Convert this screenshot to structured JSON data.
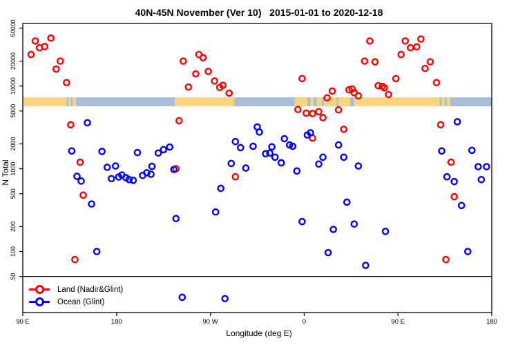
{
  "title": "40N-45N November (Ver 10)   2015-01-01 to 2020-12-18",
  "chart_data": {
    "type": "scatter",
    "title": "40N-45N November (Ver 10)   2015-01-01 to 2020-12-18",
    "xlabel": "Longitude (deg E)",
    "ylabel": "N Total",
    "x_axis": {
      "domain": [
        90,
        540
      ],
      "ticks": [
        {
          "value": 90,
          "label": "90 E"
        },
        {
          "value": 180,
          "label": "180"
        },
        {
          "value": 270,
          "label": "90 W"
        },
        {
          "value": 360,
          "label": "0"
        },
        {
          "value": 450,
          "label": "90 E"
        },
        {
          "value": 540,
          "label": "180"
        }
      ]
    },
    "y_axis": {
      "scale": "log",
      "domain": [
        18.3,
        57000
      ],
      "ticks": [
        {
          "value": 50000,
          "label": "50000"
        },
        {
          "value": 20000,
          "label": "20000"
        },
        {
          "value": 10000,
          "label": "10000"
        },
        {
          "value": 5000,
          "label": "5000"
        },
        {
          "value": 2000,
          "label": "2000"
        },
        {
          "value": 1000,
          "label": "1000"
        },
        {
          "value": 500,
          "label": "500"
        },
        {
          "value": 200,
          "label": "200"
        },
        {
          "value": 100,
          "label": "100"
        },
        {
          "value": 50,
          "label": "50"
        }
      ]
    },
    "reference_line": {
      "y": 50,
      "color": "#000000"
    },
    "map_strip": {
      "value_range": [
        5700,
        7300
      ],
      "land_color": "#F9D67E",
      "ocean_color": "#A9BDD8",
      "segments": [
        {
          "from": 90,
          "to": 132,
          "type": "land"
        },
        {
          "from": 132,
          "to": 134,
          "type": "ocean"
        },
        {
          "from": 134,
          "to": 136,
          "type": "land"
        },
        {
          "from": 136,
          "to": 138,
          "type": "ocean"
        },
        {
          "from": 138,
          "to": 141,
          "type": "land"
        },
        {
          "from": 141,
          "to": 236,
          "type": "ocean"
        },
        {
          "from": 236,
          "to": 293,
          "type": "land"
        },
        {
          "from": 293,
          "to": 351,
          "type": "ocean"
        },
        {
          "from": 351,
          "to": 363,
          "type": "land"
        },
        {
          "from": 363,
          "to": 366,
          "type": "ocean"
        },
        {
          "from": 366,
          "to": 369,
          "type": "land"
        },
        {
          "from": 369,
          "to": 372,
          "type": "ocean"
        },
        {
          "from": 372,
          "to": 377,
          "type": "land"
        },
        {
          "from": 377,
          "to": 379,
          "type": "ocean"
        },
        {
          "from": 379,
          "to": 391,
          "type": "land"
        },
        {
          "from": 391,
          "to": 393,
          "type": "ocean"
        },
        {
          "from": 393,
          "to": 404,
          "type": "land"
        },
        {
          "from": 404,
          "to": 408,
          "type": "ocean"
        },
        {
          "from": 408,
          "to": 490,
          "type": "land"
        },
        {
          "from": 490,
          "to": 492,
          "type": "ocean"
        },
        {
          "from": 492,
          "to": 495,
          "type": "land"
        },
        {
          "from": 495,
          "to": 497,
          "type": "ocean"
        },
        {
          "from": 497,
          "to": 500,
          "type": "land"
        },
        {
          "from": 500,
          "to": 540,
          "type": "ocean"
        }
      ]
    },
    "series": [
      {
        "name": "Land (Nadir&Glint)",
        "color": "#FF0000",
        "marker": "open-circle",
        "points": [
          [
            98,
            24000
          ],
          [
            102,
            35000
          ],
          [
            106,
            29000
          ],
          [
            111,
            30000
          ],
          [
            117,
            38000
          ],
          [
            122,
            16000
          ],
          [
            126,
            20000
          ],
          [
            132,
            11000
          ],
          [
            136,
            3400
          ],
          [
            140,
            80
          ],
          [
            145,
            1200
          ],
          [
            148,
            480
          ],
          [
            237,
            1000
          ],
          [
            240,
            3800
          ],
          [
            244,
            20000
          ],
          [
            249,
            9700
          ],
          [
            256,
            14000
          ],
          [
            259,
            24000
          ],
          [
            263,
            22000
          ],
          [
            268,
            15000
          ],
          [
            274,
            11500
          ],
          [
            279,
            9600
          ],
          [
            282,
            10200
          ],
          [
            288,
            8200
          ],
          [
            294,
            800
          ],
          [
            354,
            5200
          ],
          [
            358,
            12300
          ],
          [
            362,
            4700
          ],
          [
            368,
            4650
          ],
          [
            368,
            2350
          ],
          [
            374,
            4900
          ],
          [
            378,
            4150
          ],
          [
            382,
            7200
          ],
          [
            387,
            8700
          ],
          [
            393,
            5150
          ],
          [
            398,
            3000
          ],
          [
            403,
            9000
          ],
          [
            406,
            9200
          ],
          [
            408,
            8300
          ],
          [
            412,
            7600
          ],
          [
            418,
            20000
          ],
          [
            423,
            35000
          ],
          [
            428,
            19600
          ],
          [
            431,
            10100
          ],
          [
            435,
            9900
          ],
          [
            437,
            9500
          ],
          [
            441,
            7900
          ],
          [
            448,
            12300
          ],
          [
            453,
            24000
          ],
          [
            457,
            35000
          ],
          [
            462,
            29000
          ],
          [
            468,
            29700
          ],
          [
            472,
            37000
          ],
          [
            476,
            16300
          ],
          [
            481,
            19600
          ],
          [
            487,
            11000
          ],
          [
            491,
            3400
          ],
          [
            496,
            80
          ],
          [
            501,
            1200
          ],
          [
            504,
            460
          ]
        ]
      },
      {
        "name": "Ocean (Glint)",
        "color": "#0000FF",
        "marker": "open-circle",
        "points": [
          [
            137,
            1640
          ],
          [
            142,
            810
          ],
          [
            146,
            710
          ],
          [
            152,
            3600
          ],
          [
            156,
            375
          ],
          [
            161,
            100
          ],
          [
            166,
            1620
          ],
          [
            171,
            1040
          ],
          [
            175,
            760
          ],
          [
            179,
            1080
          ],
          [
            182,
            795
          ],
          [
            185,
            840
          ],
          [
            189,
            780
          ],
          [
            192,
            740
          ],
          [
            196,
            725
          ],
          [
            200,
            1570
          ],
          [
            205,
            830
          ],
          [
            209,
            895
          ],
          [
            213,
            860
          ],
          [
            214,
            1070
          ],
          [
            220,
            1550
          ],
          [
            225,
            1700
          ],
          [
            231,
            1830
          ],
          [
            235,
            980
          ],
          [
            237,
            250
          ],
          [
            243,
            28
          ],
          [
            275,
            300
          ],
          [
            280,
            580
          ],
          [
            284,
            27
          ],
          [
            290,
            1160
          ],
          [
            294,
            2130
          ],
          [
            299,
            1800
          ],
          [
            304,
            1020
          ],
          [
            311,
            1870
          ],
          [
            315,
            3200
          ],
          [
            317,
            2780
          ],
          [
            323,
            1520
          ],
          [
            327,
            1550
          ],
          [
            329,
            1840
          ],
          [
            332,
            1380
          ],
          [
            338,
            1180
          ],
          [
            341,
            2310
          ],
          [
            346,
            1940
          ],
          [
            349,
            1870
          ],
          [
            353,
            940
          ],
          [
            358,
            230
          ],
          [
            363,
            2560
          ],
          [
            366,
            2720
          ],
          [
            374,
            1140
          ],
          [
            378,
            1380
          ],
          [
            383,
            97
          ],
          [
            388,
            185
          ],
          [
            393,
            1940
          ],
          [
            398,
            1380
          ],
          [
            401,
            395
          ],
          [
            408,
            215
          ],
          [
            412,
            1080
          ],
          [
            419,
            68
          ],
          [
            438,
            175
          ],
          [
            492,
            1640
          ],
          [
            497,
            800
          ],
          [
            504,
            700
          ],
          [
            507,
            3700
          ],
          [
            511,
            360
          ],
          [
            517,
            100
          ],
          [
            521,
            1670
          ],
          [
            527,
            1060
          ],
          [
            530,
            740
          ],
          [
            535,
            1060
          ]
        ]
      }
    ],
    "legend": {
      "position": "bottom-left",
      "entries": [
        "Land (Nadir&Glint)",
        "Ocean (Glint)"
      ]
    },
    "layout": {
      "plot_left": 33,
      "plot_top": 34,
      "plot_right": 712,
      "plot_bottom": 453,
      "grid": false
    }
  }
}
